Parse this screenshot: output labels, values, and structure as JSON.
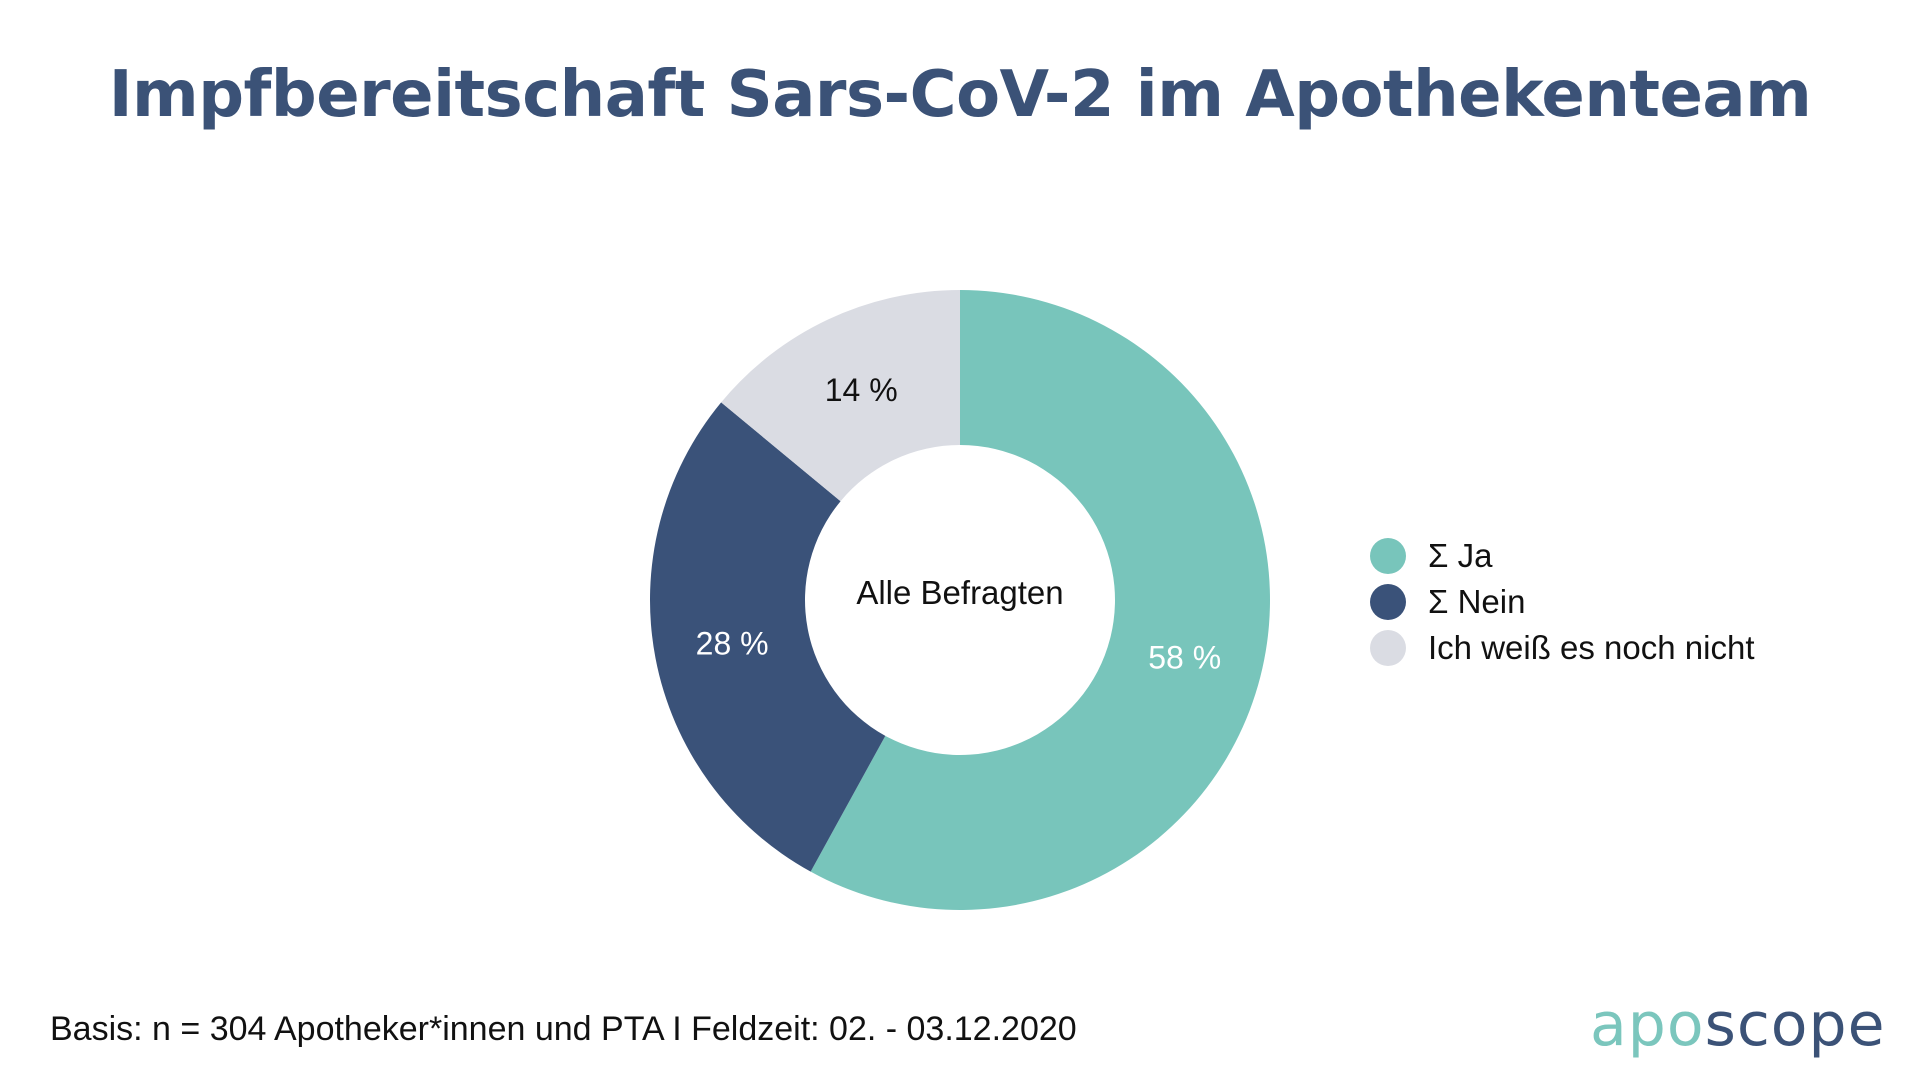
{
  "header": {
    "title": "Impfbereitschaft Sars-CoV-2 im Apothekenteam"
  },
  "chart_data": {
    "type": "pie",
    "variant": "donut",
    "center_label": "Alle Befragten",
    "categories": [
      "Σ Ja",
      "Σ Nein",
      "Ich weiß es noch nicht"
    ],
    "values": [
      58,
      28,
      14
    ],
    "value_labels": [
      "58 %",
      "28 %",
      "14 %"
    ],
    "colors": [
      "#78c5bb",
      "#3a5279",
      "#dadce3"
    ],
    "label_colors": [
      "#ffffff",
      "#ffffff",
      "#111111"
    ],
    "legend_position": "right"
  },
  "footer": {
    "source": "Basis: n = 304 Apotheker*innen und PTA I Feldzeit: 02. - 03.12.2020"
  },
  "logo": {
    "part_a": "apo",
    "part_b": "scope",
    "color_a": "#7bc6bd",
    "color_b": "#3b5277"
  },
  "theme": {
    "title_color": "#3b5277"
  }
}
